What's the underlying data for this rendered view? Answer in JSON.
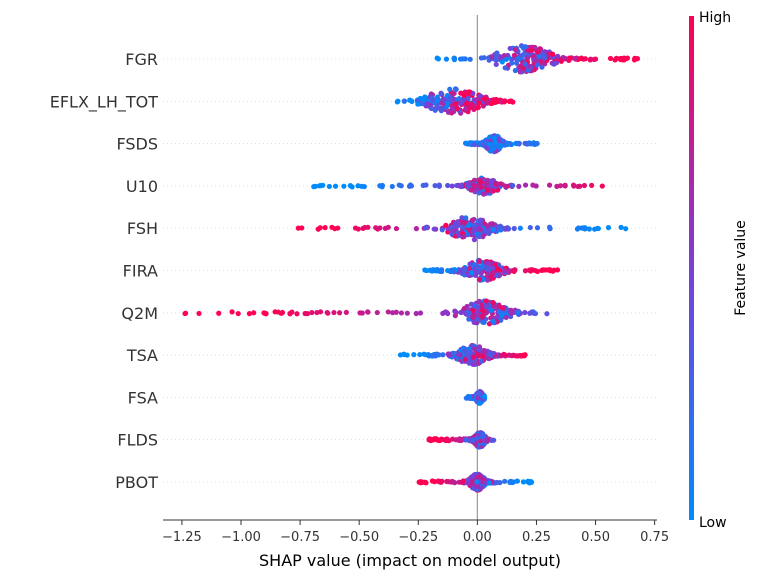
{
  "chart_data": {
    "type": "scatter",
    "subtype": "shap-beeswarm",
    "title": "",
    "xlabel": "SHAP value (impact on model output)",
    "xlim": [
      -1.33,
      0.76
    ],
    "x_ticks": [
      -1.25,
      -1.0,
      -0.75,
      -0.5,
      -0.25,
      0.0,
      0.25,
      0.5,
      0.75
    ],
    "x_tick_labels": [
      "−1.25",
      "−1.00",
      "−0.75",
      "−0.50",
      "−0.25",
      "0.00",
      "0.25",
      "0.50",
      "0.75"
    ],
    "colorbar": {
      "label": "Feature value",
      "high": "High",
      "low": "Low",
      "low_color": "#008bfb",
      "high_color": "#ff0052"
    },
    "features": [
      {
        "name": "FGR",
        "min": -0.18,
        "max": 0.68,
        "bulk": [
          0.12,
          0.35
        ],
        "center": 0.2,
        "width": 0.9,
        "low_side": "left"
      },
      {
        "name": "EFLX_LH_TOT",
        "min": -0.34,
        "max": 0.15,
        "bulk": [
          -0.22,
          0.05
        ],
        "center": -0.1,
        "width": 0.85,
        "low_side": "left"
      },
      {
        "name": "FSDS",
        "min": -0.05,
        "max": 0.26,
        "bulk": [
          0.03,
          0.1
        ],
        "center": 0.07,
        "width": 0.6,
        "low_side": "center"
      },
      {
        "name": "U10",
        "min": -0.75,
        "max": 0.53,
        "bulk": [
          -0.05,
          0.08
        ],
        "center": 0.03,
        "width": 0.55,
        "low_side": "left"
      },
      {
        "name": "FSH",
        "min": -0.79,
        "max": 0.64,
        "bulk": [
          -0.12,
          0.08
        ],
        "center": -0.03,
        "width": 0.8,
        "low_side": "right"
      },
      {
        "name": "FIRA",
        "min": -0.23,
        "max": 0.34,
        "bulk": [
          -0.05,
          0.12
        ],
        "center": 0.02,
        "width": 0.7,
        "low_side": "left"
      },
      {
        "name": "Q2M",
        "min": -1.25,
        "max": 0.3,
        "bulk": [
          -0.05,
          0.15
        ],
        "center": 0.03,
        "width": 0.8,
        "low_side": "right"
      },
      {
        "name": "TSA",
        "min": -0.33,
        "max": 0.21,
        "bulk": [
          -0.1,
          0.05
        ],
        "center": -0.02,
        "width": 0.65,
        "low_side": "left"
      },
      {
        "name": "FSA",
        "min": -0.05,
        "max": 0.03,
        "bulk": [
          -0.01,
          0.02
        ],
        "center": 0.01,
        "width": 0.4,
        "low_side": "center"
      },
      {
        "name": "FLDS",
        "min": -0.21,
        "max": 0.07,
        "bulk": [
          -0.02,
          0.04
        ],
        "center": 0.01,
        "width": 0.5,
        "low_side": "right"
      },
      {
        "name": "PBOT",
        "min": -0.25,
        "max": 0.23,
        "bulk": [
          -0.04,
          0.04
        ],
        "center": 0.0,
        "width": 0.55,
        "low_side": "right"
      }
    ],
    "grid": false,
    "legend": "colorbar-right"
  }
}
